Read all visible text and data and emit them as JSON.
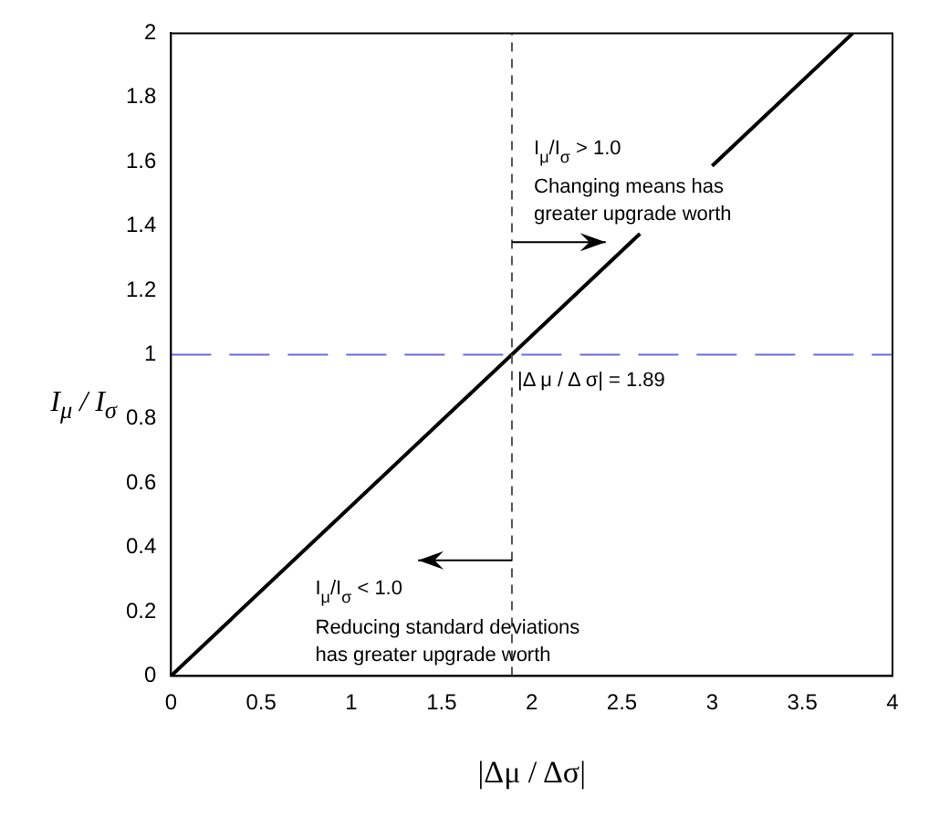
{
  "chart_data": {
    "type": "line",
    "xlabel": "|Δμ / Δσ|",
    "ylabel": "I$_{μ}$ / I$_{σ}$",
    "series": [
      {
        "color": "#000000",
        "x": [
          0,
          2.6,
          2.8,
          3.0,
          3.78
        ],
        "values": [
          0,
          1.376,
          null,
          1.587,
          2.0
        ]
      }
    ],
    "xlim": [
      0,
      4
    ],
    "xticks": [
      0,
      0.5,
      1,
      1.5,
      2,
      2.5,
      3,
      3.5,
      4
    ],
    "ylim": [
      0,
      2
    ],
    "yticks": [
      0,
      0.2,
      0.4,
      0.6,
      0.8,
      1,
      1.2,
      1.4,
      1.6,
      1.8,
      2
    ],
    "grid": false,
    "legend": false,
    "marker": "none",
    "line_style": "solid",
    "ref_lines": [
      {
        "axis": "y",
        "value": 1,
        "color": "#6b6be0",
        "line_style": "dashed"
      },
      {
        "axis": "x",
        "value": 1.89,
        "color": "#555555",
        "line_style": "dashed"
      }
    ],
    "annotations": [
      "I$_{μ}$/I$_{σ}$ > 1.0",
      "Changing means has\ngreater upgrade worth",
      {
        "text": "|Δ μ / Δ σ| = 1.89",
        "x": 1.89,
        "y": 0.92
      },
      "I$_{μ}$/I$_{σ}$ < 1.0",
      "Reducing standard deviations\nhas greater upgrade worth"
    ]
  }
}
